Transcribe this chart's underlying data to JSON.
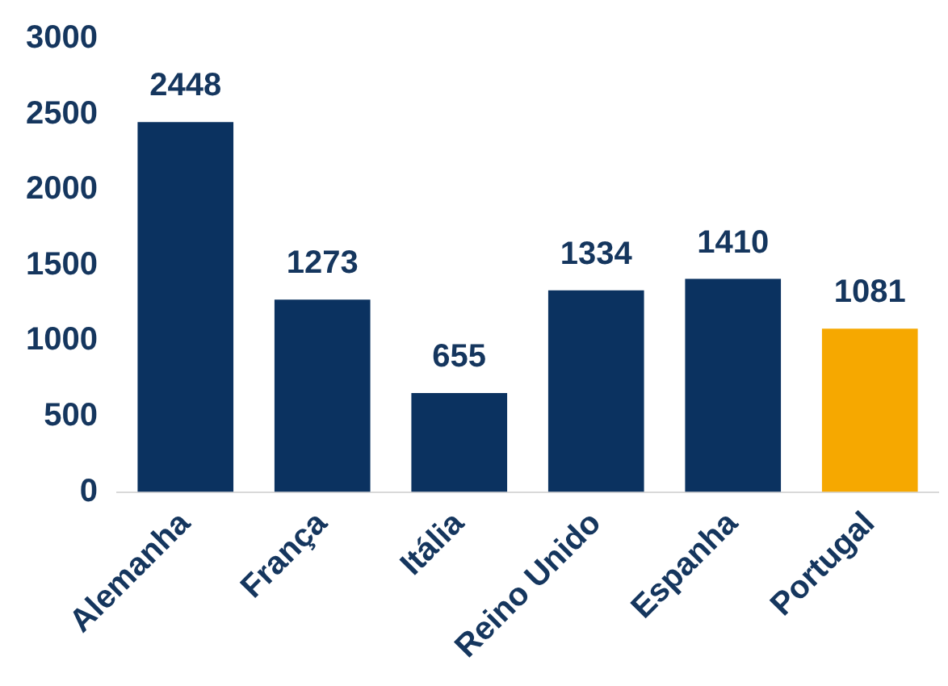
{
  "chart_data": {
    "type": "bar",
    "categories": [
      "Alemanha",
      "França",
      "Itália",
      "Reino Unido",
      "Espanha",
      "Portugal"
    ],
    "values": [
      2448,
      1273,
      655,
      1334,
      1410,
      1081
    ],
    "colors": [
      "#0b3260",
      "#0b3260",
      "#0b3260",
      "#0b3260",
      "#0b3260",
      "#f6a800"
    ],
    "ylim": [
      0,
      3000
    ],
    "yticks": [
      0,
      500,
      1000,
      1500,
      2000,
      2500,
      3000
    ],
    "grid": false,
    "legend": false,
    "data_labels": true
  }
}
